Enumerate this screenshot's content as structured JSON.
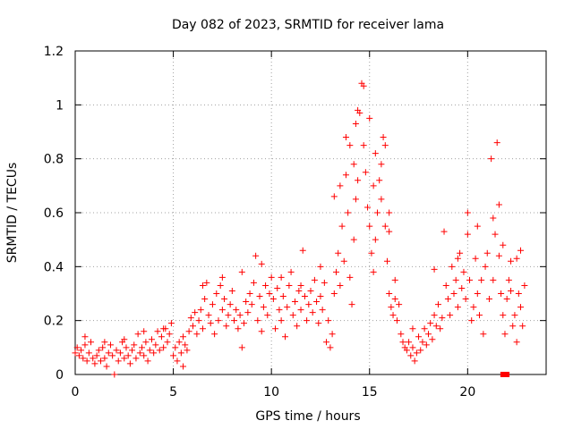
{
  "chart_data": {
    "type": "scatter",
    "title": "Day 082 of 2023, SRMTID for receiver lama",
    "xlabel": "GPS time / hours",
    "ylabel": "SRMTID / TECUs",
    "xlim": [
      0,
      24
    ],
    "ylim": [
      0,
      1.2
    ],
    "x_ticks": [
      0,
      5,
      10,
      15,
      20
    ],
    "x_tick_labels": [
      "0",
      "5",
      "10",
      "15",
      "20"
    ],
    "y_ticks": [
      0,
      0.2,
      0.4,
      0.6,
      0.8,
      1.0,
      1.2
    ],
    "y_tick_labels": [
      "0",
      "0.2",
      "0.4",
      "0.6",
      "0.8",
      "1",
      "1.2"
    ],
    "grid": true,
    "marker": "+",
    "color": "#ff0000",
    "series": [
      {
        "name": "SRMTID",
        "points": [
          [
            0.0,
            0.08
          ],
          [
            0.1,
            0.1
          ],
          [
            0.2,
            0.07
          ],
          [
            0.3,
            0.09
          ],
          [
            0.4,
            0.06
          ],
          [
            0.5,
            0.11
          ],
          [
            0.6,
            0.05
          ],
          [
            0.7,
            0.08
          ],
          [
            0.8,
            0.12
          ],
          [
            0.9,
            0.06
          ],
          [
            1.0,
            0.04
          ],
          [
            1.1,
            0.07
          ],
          [
            1.2,
            0.09
          ],
          [
            1.3,
            0.05
          ],
          [
            1.4,
            0.1
          ],
          [
            1.5,
            0.06
          ],
          [
            1.6,
            0.03
          ],
          [
            1.7,
            0.08
          ],
          [
            1.8,
            0.11
          ],
          [
            1.9,
            0.07
          ],
          [
            2.0,
            0.0
          ],
          [
            2.1,
            0.09
          ],
          [
            2.2,
            0.05
          ],
          [
            2.3,
            0.08
          ],
          [
            2.4,
            0.12
          ],
          [
            2.5,
            0.06
          ],
          [
            2.6,
            0.1
          ],
          [
            2.7,
            0.07
          ],
          [
            2.8,
            0.04
          ],
          [
            2.9,
            0.09
          ],
          [
            3.0,
            0.11
          ],
          [
            3.1,
            0.06
          ],
          [
            3.2,
            0.15
          ],
          [
            3.3,
            0.08
          ],
          [
            3.4,
            0.1
          ],
          [
            3.5,
            0.07
          ],
          [
            3.6,
            0.12
          ],
          [
            3.7,
            0.05
          ],
          [
            3.8,
            0.09
          ],
          [
            3.9,
            0.13
          ],
          [
            4.0,
            0.08
          ],
          [
            4.1,
            0.11
          ],
          [
            4.2,
            0.16
          ],
          [
            4.3,
            0.09
          ],
          [
            4.4,
            0.14
          ],
          [
            4.5,
            0.1
          ],
          [
            4.6,
            0.17
          ],
          [
            4.7,
            0.12
          ],
          [
            4.8,
            0.15
          ],
          [
            4.9,
            0.19
          ],
          [
            5.0,
            0.07
          ],
          [
            5.1,
            0.1
          ],
          [
            5.2,
            0.05
          ],
          [
            5.3,
            0.12
          ],
          [
            5.4,
            0.08
          ],
          [
            5.5,
            0.14
          ],
          [
            5.6,
            0.11
          ],
          [
            5.7,
            0.09
          ],
          [
            5.8,
            0.16
          ],
          [
            5.9,
            0.21
          ],
          [
            6.0,
            0.18
          ],
          [
            6.1,
            0.23
          ],
          [
            6.2,
            0.15
          ],
          [
            6.3,
            0.2
          ],
          [
            6.4,
            0.24
          ],
          [
            6.5,
            0.17
          ],
          [
            6.6,
            0.28
          ],
          [
            6.7,
            0.34
          ],
          [
            6.8,
            0.22
          ],
          [
            6.9,
            0.19
          ],
          [
            7.0,
            0.26
          ],
          [
            7.1,
            0.15
          ],
          [
            7.2,
            0.3
          ],
          [
            7.3,
            0.2
          ],
          [
            7.4,
            0.33
          ],
          [
            7.5,
            0.24
          ],
          [
            7.6,
            0.28
          ],
          [
            7.7,
            0.18
          ],
          [
            7.8,
            0.22
          ],
          [
            7.9,
            0.26
          ],
          [
            8.0,
            0.31
          ],
          [
            8.1,
            0.2
          ],
          [
            8.2,
            0.24
          ],
          [
            8.3,
            0.17
          ],
          [
            8.4,
            0.22
          ],
          [
            8.5,
            0.1
          ],
          [
            8.6,
            0.19
          ],
          [
            8.7,
            0.27
          ],
          [
            8.8,
            0.23
          ],
          [
            8.9,
            0.3
          ],
          [
            9.0,
            0.26
          ],
          [
            9.1,
            0.34
          ],
          [
            9.2,
            0.44
          ],
          [
            9.3,
            0.2
          ],
          [
            9.4,
            0.29
          ],
          [
            9.5,
            0.16
          ],
          [
            9.6,
            0.25
          ],
          [
            9.7,
            0.33
          ],
          [
            9.8,
            0.22
          ],
          [
            9.9,
            0.3
          ],
          [
            10.0,
            0.36
          ],
          [
            10.1,
            0.28
          ],
          [
            10.2,
            0.17
          ],
          [
            10.3,
            0.32
          ],
          [
            10.4,
            0.24
          ],
          [
            10.5,
            0.2
          ],
          [
            10.6,
            0.29
          ],
          [
            10.7,
            0.14
          ],
          [
            10.8,
            0.25
          ],
          [
            10.9,
            0.33
          ],
          [
            11.0,
            0.38
          ],
          [
            11.1,
            0.22
          ],
          [
            11.2,
            0.27
          ],
          [
            11.3,
            0.18
          ],
          [
            11.4,
            0.31
          ],
          [
            11.5,
            0.24
          ],
          [
            11.6,
            0.46
          ],
          [
            11.7,
            0.29
          ],
          [
            11.8,
            0.2
          ],
          [
            11.9,
            0.26
          ],
          [
            12.0,
            0.31
          ],
          [
            12.1,
            0.23
          ],
          [
            12.2,
            0.35
          ],
          [
            12.3,
            0.27
          ],
          [
            12.4,
            0.19
          ],
          [
            12.5,
            0.29
          ],
          [
            12.6,
            0.24
          ],
          [
            12.7,
            0.34
          ],
          [
            12.8,
            0.12
          ],
          [
            12.9,
            0.2
          ],
          [
            13.0,
            0.1
          ],
          [
            13.1,
            0.15
          ],
          [
            13.2,
            0.3
          ],
          [
            13.3,
            0.38
          ],
          [
            13.4,
            0.45
          ],
          [
            13.5,
            0.33
          ],
          [
            13.6,
            0.55
          ],
          [
            13.7,
            0.42
          ],
          [
            13.8,
            0.88
          ],
          [
            13.9,
            0.6
          ],
          [
            14.0,
            0.36
          ],
          [
            14.1,
            0.26
          ],
          [
            14.2,
            0.5
          ],
          [
            14.3,
            0.65
          ],
          [
            14.4,
            0.72
          ],
          [
            14.5,
            0.97
          ],
          [
            14.6,
            1.08
          ],
          [
            14.7,
            0.85
          ],
          [
            14.8,
            0.75
          ],
          [
            14.9,
            0.62
          ],
          [
            15.0,
            0.55
          ],
          [
            15.1,
            0.45
          ],
          [
            15.2,
            0.38
          ],
          [
            15.3,
            0.5
          ],
          [
            15.4,
            0.6
          ],
          [
            15.5,
            0.72
          ],
          [
            15.6,
            0.65
          ],
          [
            15.7,
            0.88
          ],
          [
            15.8,
            0.55
          ],
          [
            15.9,
            0.42
          ],
          [
            16.0,
            0.3
          ],
          [
            16.1,
            0.25
          ],
          [
            16.2,
            0.22
          ],
          [
            16.3,
            0.28
          ],
          [
            16.4,
            0.2
          ],
          [
            16.5,
            0.26
          ],
          [
            16.6,
            0.15
          ],
          [
            16.7,
            0.12
          ],
          [
            16.8,
            0.1
          ],
          [
            16.9,
            0.09
          ],
          [
            17.0,
            0.12
          ],
          [
            17.1,
            0.07
          ],
          [
            17.2,
            0.1
          ],
          [
            17.3,
            0.05
          ],
          [
            17.4,
            0.08
          ],
          [
            17.5,
            0.14
          ],
          [
            17.6,
            0.09
          ],
          [
            17.7,
            0.12
          ],
          [
            17.8,
            0.17
          ],
          [
            17.9,
            0.11
          ],
          [
            18.0,
            0.15
          ],
          [
            18.1,
            0.19
          ],
          [
            18.2,
            0.13
          ],
          [
            18.3,
            0.22
          ],
          [
            18.4,
            0.18
          ],
          [
            18.5,
            0.26
          ],
          [
            18.6,
            0.17
          ],
          [
            18.7,
            0.21
          ],
          [
            18.8,
            0.53
          ],
          [
            18.9,
            0.33
          ],
          [
            19.0,
            0.28
          ],
          [
            19.1,
            0.22
          ],
          [
            19.2,
            0.4
          ],
          [
            19.3,
            0.3
          ],
          [
            19.4,
            0.35
          ],
          [
            19.5,
            0.25
          ],
          [
            19.6,
            0.45
          ],
          [
            19.7,
            0.32
          ],
          [
            19.8,
            0.38
          ],
          [
            19.9,
            0.28
          ],
          [
            20.0,
            0.6
          ],
          [
            20.1,
            0.35
          ],
          [
            20.2,
            0.2
          ],
          [
            20.3,
            0.25
          ],
          [
            20.4,
            0.43
          ],
          [
            20.5,
            0.3
          ],
          [
            20.6,
            0.22
          ],
          [
            20.7,
            0.35
          ],
          [
            20.8,
            0.15
          ],
          [
            20.9,
            0.4
          ],
          [
            21.0,
            0.45
          ],
          [
            21.1,
            0.28
          ],
          [
            21.2,
            0.8
          ],
          [
            21.3,
            0.35
          ],
          [
            21.4,
            0.52
          ],
          [
            21.5,
            0.86
          ],
          [
            21.6,
            0.44
          ],
          [
            21.7,
            0.3
          ],
          [
            21.8,
            0.22
          ],
          [
            21.9,
            0.15
          ],
          [
            22.0,
            0.28
          ],
          [
            22.1,
            0.35
          ],
          [
            22.2,
            0.31
          ],
          [
            22.3,
            0.18
          ],
          [
            22.4,
            0.22
          ],
          [
            22.5,
            0.12
          ],
          [
            22.6,
            0.3
          ],
          [
            22.7,
            0.25
          ],
          [
            22.8,
            0.18
          ],
          [
            22.9,
            0.33
          ],
          [
            22.5,
            0.43
          ],
          [
            22.7,
            0.46
          ],
          [
            0.5,
            0.14
          ],
          [
            1.5,
            0.12
          ],
          [
            2.5,
            0.13
          ],
          [
            3.5,
            0.16
          ],
          [
            4.5,
            0.17
          ],
          [
            5.5,
            0.03
          ],
          [
            6.5,
            0.33
          ],
          [
            7.5,
            0.36
          ],
          [
            8.5,
            0.38
          ],
          [
            9.5,
            0.41
          ],
          [
            10.5,
            0.36
          ],
          [
            11.5,
            0.33
          ],
          [
            12.5,
            0.4
          ],
          [
            13.2,
            0.66
          ],
          [
            13.5,
            0.7
          ],
          [
            13.8,
            0.74
          ],
          [
            14.0,
            0.85
          ],
          [
            14.2,
            0.78
          ],
          [
            14.4,
            0.98
          ],
          [
            14.7,
            1.07
          ],
          [
            15.0,
            0.95
          ],
          [
            15.3,
            0.82
          ],
          [
            15.6,
            0.78
          ],
          [
            15.8,
            0.85
          ],
          [
            16.0,
            0.53
          ],
          [
            16.3,
            0.35
          ],
          [
            17.2,
            0.17
          ],
          [
            18.3,
            0.39
          ],
          [
            19.5,
            0.43
          ],
          [
            20.0,
            0.52
          ],
          [
            20.5,
            0.55
          ],
          [
            21.3,
            0.58
          ],
          [
            21.6,
            0.63
          ],
          [
            21.8,
            0.48
          ],
          [
            22.2,
            0.42
          ],
          [
            16.0,
            0.6
          ],
          [
            14.3,
            0.93
          ],
          [
            15.2,
            0.7
          ]
        ]
      }
    ],
    "annotations": [
      {
        "type": "filled-squares",
        "x": [
          21.85,
          21.95
        ],
        "y": [
          0.0,
          0.0
        ]
      }
    ]
  }
}
